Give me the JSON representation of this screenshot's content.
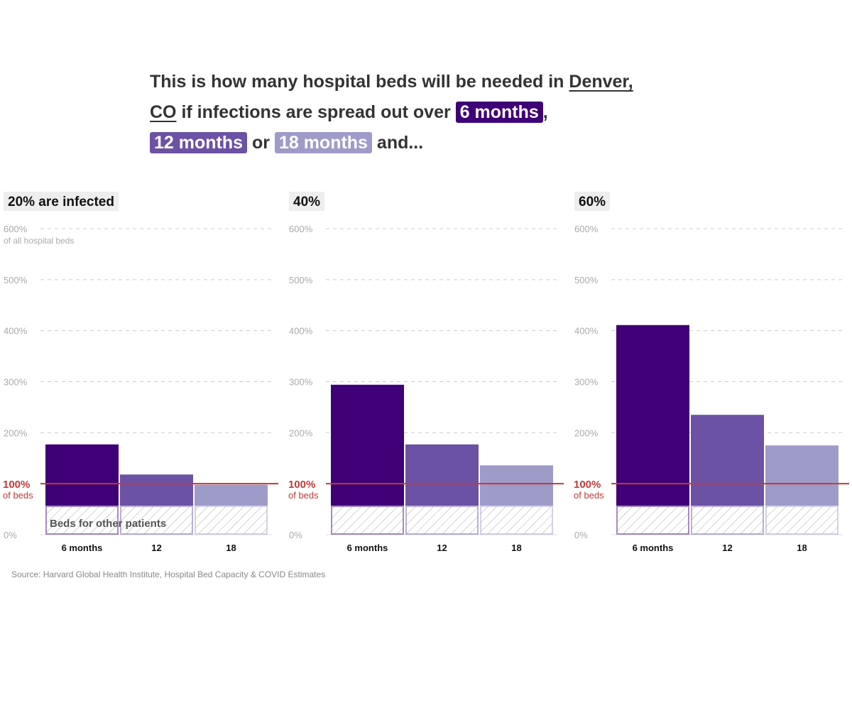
{
  "title": {
    "part1": "This is how many hospital beds will be needed in ",
    "city": "Denver,",
    "state": "CO",
    "part2": " if infections are spread out over ",
    "pill6": "6 months",
    "comma": ",",
    "pill12": "12 months",
    "or": " or ",
    "pill18": "18 months",
    "end": " and..."
  },
  "colors": {
    "6 months": "#3f0077",
    "12": "#6b52a4",
    "18": "#9f9bc9",
    "capacity_line": "#c0393b",
    "other_patients_hatch": "#bbb"
  },
  "chart_data": {
    "type": "bar",
    "ylim": [
      0,
      600
    ],
    "grid": true,
    "yticks": [
      "0%",
      "100%",
      "200%",
      "300%",
      "400%",
      "500%",
      "600%"
    ],
    "ytick_note_top": "of all hospital beds",
    "capacity_line": {
      "value": 100,
      "label": "100%",
      "sublabel": "of beds"
    },
    "other_patients": {
      "value": 57,
      "label": "Beds for other patients"
    },
    "categories": [
      "6 months",
      "12",
      "18"
    ],
    "panels": [
      {
        "title": "20% are infected",
        "values": [
          177,
          118,
          98
        ]
      },
      {
        "title": "40%",
        "values": [
          294,
          177,
          136
        ]
      },
      {
        "title": "60%",
        "values": [
          411,
          235,
          175
        ]
      }
    ]
  },
  "source": "Source: Harvard Global Health Institute, Hospital Bed Capacity & COVID Estimates"
}
